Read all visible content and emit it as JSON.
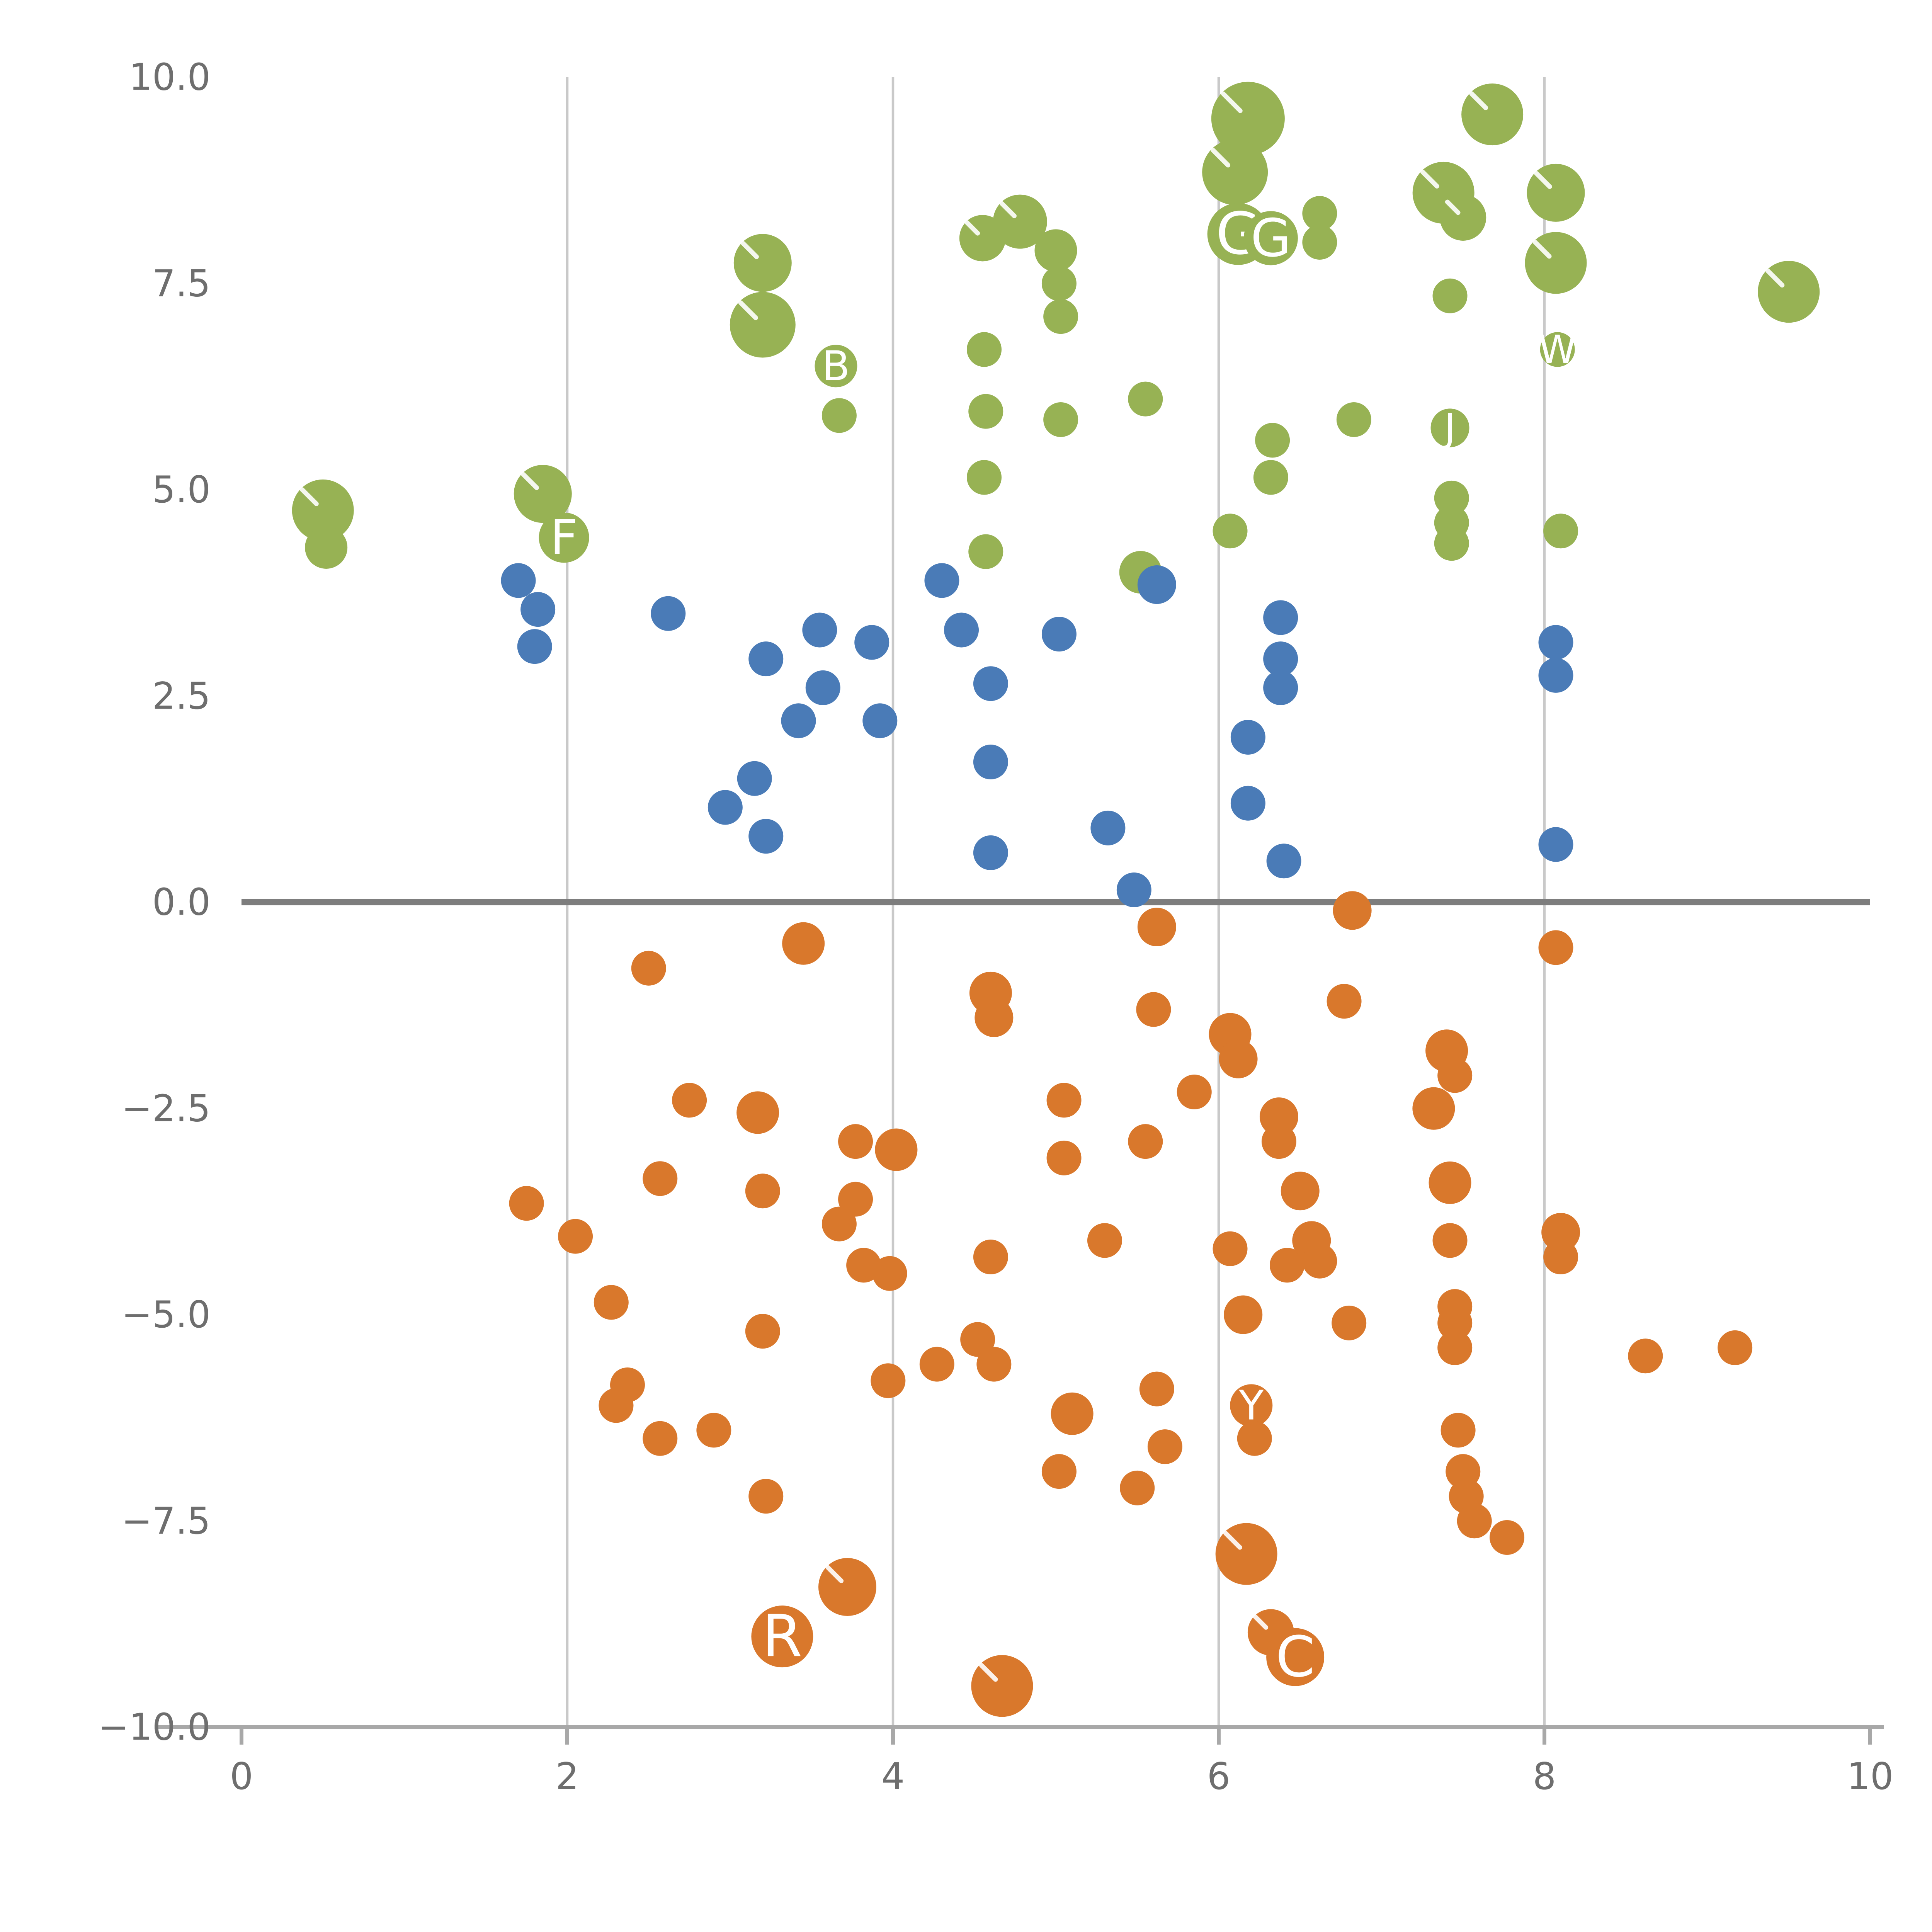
{
  "chart_style": {
    "background": "#ffffff",
    "tick_color": "#6e6e6e",
    "grid_color": "#c9c9c9",
    "axis_color": "#a8a8a8",
    "zero_line_color": "#7d7d7d",
    "label_color": "#ffffff"
  },
  "chart_data": {
    "type": "scatter",
    "title": "",
    "subtitle": "",
    "xlabel": "",
    "ylabel": "",
    "xlim": [
      0,
      10
    ],
    "ylim": [
      -10,
      10
    ],
    "x_ticks": [
      "0",
      "2",
      "4",
      "6",
      "8",
      "10"
    ],
    "x_tick_values": [
      0,
      2,
      4,
      6,
      8,
      10
    ],
    "y_ticks": [
      "10.0",
      "7.5",
      "5.0",
      "2.5",
      "0.0",
      "−2.5",
      "−5.0",
      "−7.5",
      "−10.0"
    ],
    "y_tick_values": [
      10,
      7.5,
      5,
      2.5,
      0,
      -2.5,
      -5,
      -7.5,
      -10
    ],
    "gridlines": {
      "vertical_at": [
        2,
        4,
        6,
        8
      ],
      "horizontal": false
    },
    "zero_line_y": 0,
    "legend": "none",
    "series": [
      {
        "name": "green",
        "color": "#97b254",
        "points": [
          [
            0.5,
            4.75,
            16
          ],
          [
            0.52,
            4.3,
            11
          ],
          [
            1.85,
            4.95,
            15
          ],
          [
            1.98,
            4.42,
            13,
            "F"
          ],
          [
            3.2,
            7.75,
            15
          ],
          [
            3.2,
            7.0,
            17
          ],
          [
            3.65,
            6.5,
            11,
            "B"
          ],
          [
            3.67,
            5.9,
            9
          ],
          [
            4.55,
            8.05,
            12
          ],
          [
            4.78,
            8.25,
            14
          ],
          [
            4.56,
            6.7,
            9
          ],
          [
            4.57,
            5.95,
            9
          ],
          [
            4.56,
            5.15,
            9
          ],
          [
            4.57,
            4.25,
            9
          ],
          [
            5.0,
            7.9,
            11
          ],
          [
            5.02,
            7.5,
            9
          ],
          [
            5.03,
            7.1,
            9
          ],
          [
            5.03,
            5.85,
            9
          ],
          [
            5.55,
            6.1,
            9
          ],
          [
            5.52,
            4.0,
            11
          ],
          [
            6.18,
            9.5,
            19
          ],
          [
            6.1,
            8.85,
            17
          ],
          [
            6.12,
            8.1,
            16,
            "G"
          ],
          [
            6.32,
            8.05,
            14,
            "G"
          ],
          [
            6.33,
            5.6,
            9
          ],
          [
            6.32,
            5.15,
            9
          ],
          [
            6.07,
            4.5,
            9
          ],
          [
            6.62,
            8.35,
            9
          ],
          [
            6.62,
            8.0,
            9
          ],
          [
            6.83,
            5.85,
            9
          ],
          [
            7.38,
            8.6,
            16
          ],
          [
            7.5,
            8.3,
            12
          ],
          [
            7.42,
            7.35,
            9
          ],
          [
            7.42,
            5.75,
            10,
            "J"
          ],
          [
            7.43,
            4.9,
            9
          ],
          [
            7.43,
            4.6,
            9
          ],
          [
            7.43,
            4.35,
            9
          ],
          [
            7.68,
            9.55,
            16
          ],
          [
            8.07,
            8.6,
            15
          ],
          [
            8.07,
            7.75,
            16
          ],
          [
            8.08,
            6.7,
            9,
            "W"
          ],
          [
            8.1,
            4.5,
            9
          ],
          [
            9.5,
            7.4,
            16
          ]
        ]
      },
      {
        "name": "blue",
        "color": "#4a7bb7",
        "points": [
          [
            1.7,
            3.9,
            9
          ],
          [
            1.82,
            3.55,
            9
          ],
          [
            1.8,
            3.1,
            9
          ],
          [
            2.62,
            3.5,
            9
          ],
          [
            3.22,
            2.95,
            9
          ],
          [
            2.97,
            1.15,
            9
          ],
          [
            3.15,
            1.5,
            9
          ],
          [
            3.22,
            0.8,
            9
          ],
          [
            3.42,
            2.2,
            9
          ],
          [
            3.55,
            3.3,
            9
          ],
          [
            3.57,
            2.6,
            9
          ],
          [
            3.87,
            3.15,
            9
          ],
          [
            3.92,
            2.2,
            9
          ],
          [
            4.3,
            3.9,
            9
          ],
          [
            4.42,
            3.3,
            9
          ],
          [
            4.6,
            2.65,
            9
          ],
          [
            4.6,
            1.7,
            9
          ],
          [
            4.6,
            0.6,
            9
          ],
          [
            5.02,
            3.25,
            9
          ],
          [
            5.32,
            0.9,
            9
          ],
          [
            5.48,
            0.15,
            9
          ],
          [
            5.62,
            3.85,
            10
          ],
          [
            6.18,
            2.0,
            9
          ],
          [
            6.18,
            1.2,
            9
          ],
          [
            6.38,
            3.45,
            9
          ],
          [
            6.38,
            2.95,
            9
          ],
          [
            6.38,
            2.6,
            9
          ],
          [
            6.4,
            0.5,
            9
          ],
          [
            8.07,
            3.15,
            9
          ],
          [
            8.07,
            2.75,
            9
          ],
          [
            8.07,
            0.7,
            9
          ]
        ]
      },
      {
        "name": "orange",
        "color": "#d9782c",
        "points": [
          [
            1.75,
            -3.65,
            9
          ],
          [
            2.05,
            -4.05,
            9
          ],
          [
            2.27,
            -4.85,
            9
          ],
          [
            2.3,
            -6.1,
            9
          ],
          [
            2.37,
            -5.85,
            9
          ],
          [
            2.5,
            -0.8,
            9
          ],
          [
            2.57,
            -3.35,
            9
          ],
          [
            2.57,
            -6.5,
            9
          ],
          [
            2.75,
            -2.4,
            9
          ],
          [
            2.9,
            -6.4,
            9
          ],
          [
            3.17,
            -2.55,
            11
          ],
          [
            3.2,
            -3.5,
            9
          ],
          [
            3.2,
            -5.2,
            9
          ],
          [
            3.22,
            -7.2,
            9
          ],
          [
            3.32,
            -8.9,
            16,
            "R"
          ],
          [
            3.45,
            -0.5,
            11
          ],
          [
            3.67,
            -3.9,
            9
          ],
          [
            3.72,
            -8.3,
            15
          ],
          [
            3.77,
            -2.9,
            9
          ],
          [
            3.77,
            -3.6,
            9
          ],
          [
            3.82,
            -4.4,
            9
          ],
          [
            3.98,
            -4.5,
            9
          ],
          [
            4.02,
            -3.0,
            11
          ],
          [
            3.97,
            -5.8,
            9
          ],
          [
            4.27,
            -5.6,
            9
          ],
          [
            4.52,
            -5.3,
            9
          ],
          [
            4.6,
            -1.1,
            11
          ],
          [
            4.62,
            -1.4,
            10
          ],
          [
            4.6,
            -4.3,
            9
          ],
          [
            4.62,
            -5.6,
            9
          ],
          [
            4.67,
            -9.5,
            16
          ],
          [
            5.05,
            -2.4,
            9
          ],
          [
            5.05,
            -3.1,
            9
          ],
          [
            5.1,
            -6.2,
            11
          ],
          [
            5.02,
            -6.9,
            9
          ],
          [
            5.3,
            -4.1,
            9
          ],
          [
            5.5,
            -7.1,
            9
          ],
          [
            5.55,
            -2.9,
            9
          ],
          [
            5.6,
            -1.3,
            9
          ],
          [
            5.62,
            -0.3,
            10
          ],
          [
            5.62,
            -5.9,
            9
          ],
          [
            5.67,
            -6.6,
            9
          ],
          [
            5.85,
            -2.3,
            9
          ],
          [
            6.07,
            -1.6,
            11
          ],
          [
            6.12,
            -1.9,
            10
          ],
          [
            6.07,
            -4.2,
            9
          ],
          [
            6.15,
            -5.0,
            10
          ],
          [
            6.2,
            -6.1,
            11,
            "Y"
          ],
          [
            6.22,
            -6.5,
            9
          ],
          [
            6.37,
            -2.6,
            10
          ],
          [
            6.37,
            -2.9,
            9
          ],
          [
            6.42,
            -4.4,
            9
          ],
          [
            6.5,
            -3.5,
            10
          ],
          [
            6.57,
            -4.1,
            10
          ],
          [
            6.62,
            -4.35,
            9
          ],
          [
            6.17,
            -7.9,
            16
          ],
          [
            6.32,
            -8.85,
            12
          ],
          [
            6.47,
            -9.15,
            15,
            "C"
          ],
          [
            6.77,
            -1.2,
            9
          ],
          [
            6.8,
            -5.1,
            9
          ],
          [
            6.82,
            -0.1,
            10
          ],
          [
            7.32,
            -2.5,
            11
          ],
          [
            7.4,
            -1.8,
            11
          ],
          [
            7.45,
            -2.1,
            9
          ],
          [
            7.42,
            -3.4,
            11
          ],
          [
            7.42,
            -4.1,
            9
          ],
          [
            7.45,
            -4.9,
            9
          ],
          [
            7.45,
            -5.1,
            9
          ],
          [
            7.45,
            -5.4,
            9
          ],
          [
            7.47,
            -6.4,
            9
          ],
          [
            7.5,
            -6.9,
            9
          ],
          [
            7.52,
            -7.2,
            9
          ],
          [
            7.57,
            -7.5,
            9
          ],
          [
            7.77,
            -7.7,
            9
          ],
          [
            8.07,
            -0.55,
            9
          ],
          [
            8.1,
            -4.0,
            10
          ],
          [
            8.1,
            -4.3,
            9
          ],
          [
            8.62,
            -5.5,
            9
          ],
          [
            9.17,
            -5.4,
            9
          ]
        ]
      }
    ]
  }
}
